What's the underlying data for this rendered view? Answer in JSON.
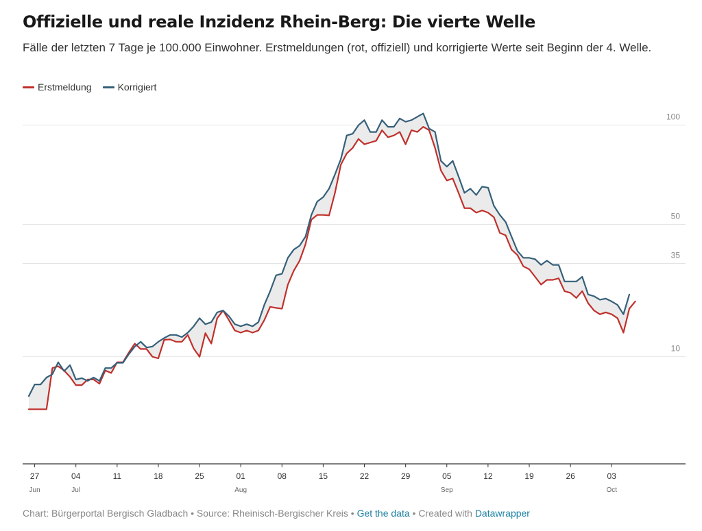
{
  "header": {
    "title": "Offizielle und reale Inzidenz Rhein-Berg: Die vierte Welle",
    "subtitle": "Fälle der letzten 7 Tage je 100.000 Einwohner. Erstmeldungen (rot, offiziell) und korrigierte Werte seit Beginn der 4. Welle."
  },
  "legend": [
    {
      "label": "Erstmeldung",
      "color": "#c0302b"
    },
    {
      "label": "Korrigiert",
      "color": "#35607a"
    }
  ],
  "footer": {
    "prefix": "Chart: Bürgerportal Bergisch Gladbach • Source: Rheinisch-Bergischer Kreis • ",
    "get_data": "Get the data",
    "middle": " • Created with ",
    "datawrapper": "Datawrapper"
  },
  "chart_data": {
    "type": "line",
    "title": "Offizielle und reale Inzidenz Rhein-Berg: Die vierte Welle",
    "subtitle": "Fälle der letzten 7 Tage je 100.000 Einwohner. Erstmeldungen (rot, offiziell) und korrigierte Werte seit Beginn der 4. Welle.",
    "xlabel": "",
    "ylabel": "",
    "x_start": "2021-06-26",
    "x_end": "2021-10-06",
    "y_scale": "sqrt",
    "ylim": [
      0,
      118
    ],
    "y_ticks": [
      10,
      35,
      50,
      100
    ],
    "x_ticks": [
      {
        "date": "2021-06-27",
        "label": "27",
        "sub": "Jun"
      },
      {
        "date": "2021-07-04",
        "label": "04",
        "sub": "Jul"
      },
      {
        "date": "2021-07-11",
        "label": "11",
        "sub": ""
      },
      {
        "date": "2021-07-18",
        "label": "18",
        "sub": ""
      },
      {
        "date": "2021-07-25",
        "label": "25",
        "sub": ""
      },
      {
        "date": "2021-08-01",
        "label": "01",
        "sub": "Aug"
      },
      {
        "date": "2021-08-08",
        "label": "08",
        "sub": ""
      },
      {
        "date": "2021-08-15",
        "label": "15",
        "sub": ""
      },
      {
        "date": "2021-08-22",
        "label": "22",
        "sub": ""
      },
      {
        "date": "2021-08-29",
        "label": "29",
        "sub": ""
      },
      {
        "date": "2021-09-05",
        "label": "05",
        "sub": "Sep"
      },
      {
        "date": "2021-09-12",
        "label": "12",
        "sub": ""
      },
      {
        "date": "2021-09-19",
        "label": "19",
        "sub": ""
      },
      {
        "date": "2021-09-26",
        "label": "26",
        "sub": ""
      },
      {
        "date": "2021-10-03",
        "label": "03",
        "sub": "Oct"
      }
    ],
    "grid": true,
    "legend_position": "top-left",
    "series": [
      {
        "name": "Erstmeldung",
        "color": "#c0302b",
        "values": [
          [
            0.0,
            2.6
          ],
          [
            1.0,
            2.6
          ],
          [
            2.0,
            2.6
          ],
          [
            3.0,
            2.6
          ],
          [
            4.0,
            8.0
          ],
          [
            5.0,
            8.3
          ],
          [
            6.0,
            7.6
          ],
          [
            7.0,
            6.6
          ],
          [
            8.0,
            5.4
          ],
          [
            9.0,
            5.4
          ],
          [
            10.0,
            6.2
          ],
          [
            11.0,
            6.2
          ],
          [
            12.0,
            5.6
          ],
          [
            13.0,
            7.6
          ],
          [
            14.0,
            7.2
          ],
          [
            15.0,
            9.0
          ],
          [
            16.0,
            9.0
          ],
          [
            17.0,
            10.8
          ],
          [
            18.0,
            12.6
          ],
          [
            19.0,
            11.5
          ],
          [
            20.0,
            11.5
          ],
          [
            21.0,
            10.0
          ],
          [
            22.0,
            9.7
          ],
          [
            23.0,
            13.4
          ],
          [
            24.0,
            13.5
          ],
          [
            25.0,
            13.0
          ],
          [
            26.0,
            13.0
          ],
          [
            27.0,
            14.5
          ],
          [
            28.0,
            11.6
          ],
          [
            29.0,
            10.0
          ],
          [
            30.0,
            14.9
          ],
          [
            31.0,
            12.6
          ],
          [
            32.0,
            18.5
          ],
          [
            33.0,
            20.5
          ],
          [
            34.0,
            18.0
          ],
          [
            35.0,
            15.5
          ],
          [
            36.0,
            15.0
          ],
          [
            37.0,
            15.5
          ],
          [
            38.0,
            15.0
          ],
          [
            39.0,
            15.5
          ],
          [
            40.0,
            18.0
          ],
          [
            41.0,
            21.5
          ],
          [
            42.0,
            21.2
          ],
          [
            43.0,
            21.0
          ],
          [
            44.0,
            28.0
          ],
          [
            45.0,
            32.5
          ],
          [
            46.0,
            36.0
          ],
          [
            47.0,
            42.0
          ],
          [
            48.0,
            52.0
          ],
          [
            49.0,
            54.0
          ],
          [
            50.0,
            54.0
          ],
          [
            51.0,
            53.8
          ],
          [
            52.0,
            64.0
          ],
          [
            53.0,
            78.0
          ],
          [
            54.0,
            84.0
          ],
          [
            55.0,
            87.0
          ],
          [
            56.0,
            92.0
          ],
          [
            57.0,
            89.0
          ],
          [
            58.0,
            90.0
          ],
          [
            59.0,
            91.0
          ],
          [
            60.0,
            97.0
          ],
          [
            61.0,
            93.0
          ],
          [
            62.0,
            94.0
          ],
          [
            63.0,
            96.0
          ],
          [
            64.0,
            89.0
          ],
          [
            65.0,
            97.0
          ],
          [
            66.0,
            96.0
          ],
          [
            67.0,
            99.0
          ],
          [
            68.0,
            97.0
          ],
          [
            69.0,
            87.0
          ],
          [
            70.0,
            75.0
          ],
          [
            71.0,
            70.0
          ],
          [
            72.0,
            71.0
          ],
          [
            73.0,
            64.0
          ],
          [
            74.0,
            57.0
          ],
          [
            75.0,
            57.0
          ],
          [
            76.0,
            55.0
          ],
          [
            77.0,
            56.0
          ],
          [
            78.0,
            55.0
          ],
          [
            79.0,
            53.0
          ],
          [
            80.0,
            46.5
          ],
          [
            81.0,
            45.5
          ],
          [
            82.0,
            40.0
          ],
          [
            83.0,
            38.0
          ],
          [
            84.0,
            34.0
          ],
          [
            85.0,
            33.0
          ],
          [
            86.0,
            30.5
          ],
          [
            87.0,
            28.0
          ],
          [
            88.0,
            29.5
          ],
          [
            89.0,
            29.5
          ],
          [
            90.0,
            30.0
          ],
          [
            91.0,
            26.0
          ],
          [
            92.0,
            25.5
          ],
          [
            93.0,
            24.0
          ],
          [
            94.0,
            26.0
          ],
          [
            95.0,
            22.5
          ],
          [
            96.0,
            20.5
          ],
          [
            97.0,
            19.5
          ],
          [
            98.0,
            20.0
          ],
          [
            99.0,
            19.5
          ],
          [
            100.0,
            18.5
          ],
          [
            101.0,
            15.0
          ],
          [
            102.0,
            21.0
          ],
          [
            103.0,
            23.0
          ]
        ]
      },
      {
        "name": "Korrigiert",
        "color": "#35607a",
        "values": [
          [
            0.0,
            4.0
          ],
          [
            1.0,
            5.5
          ],
          [
            2.0,
            5.5
          ],
          [
            3.0,
            6.5
          ],
          [
            4.0,
            7.0
          ],
          [
            5.0,
            9.0
          ],
          [
            6.0,
            7.5
          ],
          [
            7.0,
            8.5
          ],
          [
            8.0,
            6.2
          ],
          [
            9.0,
            6.4
          ],
          [
            10.0,
            6.0
          ],
          [
            11.0,
            6.5
          ],
          [
            12.0,
            6.0
          ],
          [
            13.0,
            8.0
          ],
          [
            14.0,
            8.0
          ],
          [
            15.0,
            8.9
          ],
          [
            16.0,
            8.9
          ],
          [
            17.0,
            10.5
          ],
          [
            18.0,
            12.0
          ],
          [
            19.0,
            13.0
          ],
          [
            20.0,
            11.8
          ],
          [
            21.0,
            12.0
          ],
          [
            22.0,
            13.0
          ],
          [
            23.0,
            13.8
          ],
          [
            24.0,
            14.5
          ],
          [
            25.0,
            14.5
          ],
          [
            26.0,
            14.0
          ],
          [
            27.0,
            15.0
          ],
          [
            28.0,
            16.5
          ],
          [
            29.0,
            18.5
          ],
          [
            30.0,
            17.0
          ],
          [
            31.0,
            17.5
          ],
          [
            32.0,
            20.0
          ],
          [
            33.0,
            20.5
          ],
          [
            34.0,
            19.0
          ],
          [
            35.0,
            17.0
          ],
          [
            36.0,
            16.5
          ],
          [
            37.0,
            17.0
          ],
          [
            38.0,
            16.5
          ],
          [
            39.0,
            17.5
          ],
          [
            40.0,
            22.0
          ],
          [
            41.0,
            26.0
          ],
          [
            42.0,
            31.0
          ],
          [
            43.0,
            31.5
          ],
          [
            44.0,
            37.0
          ],
          [
            45.0,
            40.0
          ],
          [
            46.0,
            41.5
          ],
          [
            47.0,
            45.0
          ],
          [
            48.0,
            54.0
          ],
          [
            49.0,
            60.0
          ],
          [
            50.0,
            62.0
          ],
          [
            51.0,
            66.0
          ],
          [
            52.0,
            73.0
          ],
          [
            53.0,
            81.0
          ],
          [
            54.0,
            94.0
          ],
          [
            55.0,
            95.0
          ],
          [
            56.0,
            100.0
          ],
          [
            57.0,
            103.0
          ],
          [
            58.0,
            96.0
          ],
          [
            59.0,
            96.0
          ],
          [
            60.0,
            103.0
          ],
          [
            61.0,
            99.0
          ],
          [
            62.0,
            99.0
          ],
          [
            63.0,
            104.0
          ],
          [
            64.0,
            102.0
          ],
          [
            65.0,
            103.0
          ],
          [
            66.0,
            105.0
          ],
          [
            67.0,
            107.0
          ],
          [
            68.0,
            98.0
          ],
          [
            69.0,
            96.0
          ],
          [
            70.0,
            80.0
          ],
          [
            71.0,
            77.0
          ],
          [
            72.0,
            80.0
          ],
          [
            73.0,
            72.0
          ],
          [
            74.0,
            64.0
          ],
          [
            75.0,
            66.0
          ],
          [
            76.0,
            63.0
          ],
          [
            77.0,
            67.0
          ],
          [
            78.0,
            66.5
          ],
          [
            79.0,
            58.0
          ],
          [
            80.0,
            54.0
          ],
          [
            81.0,
            51.0
          ],
          [
            82.0,
            45.0
          ],
          [
            83.0,
            39.5
          ],
          [
            84.0,
            37.0
          ],
          [
            85.0,
            37.0
          ],
          [
            86.0,
            36.5
          ],
          [
            87.0,
            34.5
          ],
          [
            88.0,
            36.0
          ],
          [
            89.0,
            34.5
          ],
          [
            90.0,
            34.5
          ],
          [
            91.0,
            29.0
          ],
          [
            92.0,
            29.0
          ],
          [
            93.0,
            29.0
          ],
          [
            94.0,
            30.5
          ],
          [
            95.0,
            25.0
          ],
          [
            96.0,
            24.5
          ],
          [
            97.0,
            23.5
          ],
          [
            98.0,
            23.8
          ],
          [
            99.0,
            23.0
          ],
          [
            100.0,
            22.0
          ],
          [
            101.0,
            19.5
          ],
          [
            102.0,
            25.0
          ]
        ]
      }
    ]
  }
}
